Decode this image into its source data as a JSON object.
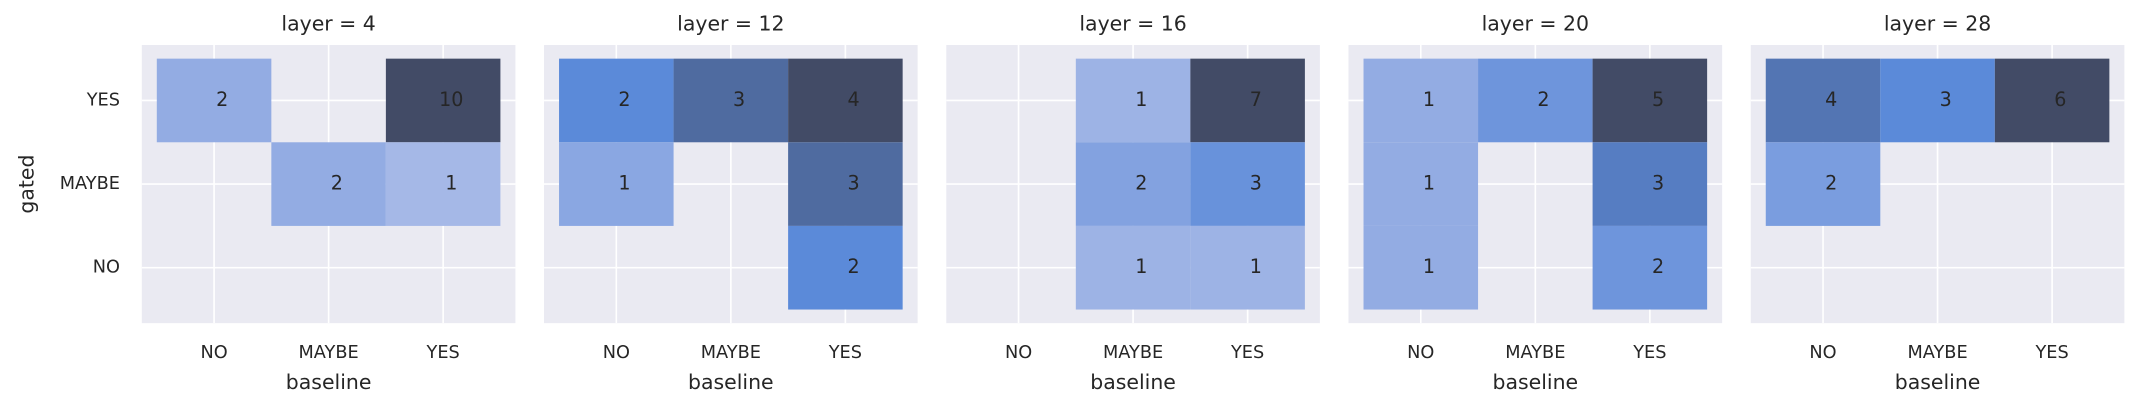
{
  "chart_data": [
    {
      "type": "heatmap",
      "title": "layer = 4",
      "x_categories": [
        "NO",
        "MAYBE",
        "YES"
      ],
      "y_categories": [
        "YES",
        "MAYBE",
        "NO"
      ],
      "values": [
        [
          2,
          null,
          10
        ],
        [
          null,
          2,
          1
        ],
        [
          null,
          null,
          null
        ]
      ],
      "xlabel": "baseline",
      "ylabel": "gated",
      "colors": [
        "#b8c3ea",
        "#5b8ad9",
        "#424b66"
      ],
      "grid": true
    },
    {
      "type": "heatmap",
      "title": "layer = 12",
      "x_categories": [
        "NO",
        "MAYBE",
        "YES"
      ],
      "y_categories": [
        "YES",
        "MAYBE",
        "NO"
      ],
      "values": [
        [
          2,
          3,
          4
        ],
        [
          1,
          null,
          3
        ],
        [
          null,
          null,
          2
        ]
      ],
      "xlabel": "baseline",
      "colors": [
        "#b8c3ea",
        "#5b8ad9",
        "#424b66"
      ],
      "grid": true
    },
    {
      "type": "heatmap",
      "title": "layer = 16",
      "x_categories": [
        "NO",
        "MAYBE",
        "YES"
      ],
      "y_categories": [
        "YES",
        "MAYBE",
        "NO"
      ],
      "values": [
        [
          null,
          1,
          7
        ],
        [
          null,
          2,
          3
        ],
        [
          null,
          1,
          1
        ]
      ],
      "xlabel": "baseline",
      "colors": [
        "#b8c3ea",
        "#5b8ad9",
        "#424b66"
      ],
      "grid": true
    },
    {
      "type": "heatmap",
      "title": "layer = 20",
      "x_categories": [
        "NO",
        "MAYBE",
        "YES"
      ],
      "y_categories": [
        "YES",
        "MAYBE",
        "NO"
      ],
      "values": [
        [
          1,
          2,
          5
        ],
        [
          1,
          null,
          3
        ],
        [
          1,
          null,
          2
        ]
      ],
      "xlabel": "baseline",
      "colors": [
        "#b8c3ea",
        "#5b8ad9",
        "#424b66"
      ],
      "grid": true
    },
    {
      "type": "heatmap",
      "title": "layer = 28",
      "x_categories": [
        "NO",
        "MAYBE",
        "YES"
      ],
      "y_categories": [
        "YES",
        "MAYBE",
        "NO"
      ],
      "values": [
        [
          4,
          3,
          6
        ],
        [
          2,
          null,
          null
        ],
        [
          null,
          null,
          null
        ]
      ],
      "xlabel": "baseline",
      "colors": [
        "#b8c3ea",
        "#5b8ad9",
        "#424b66"
      ],
      "grid": true
    }
  ]
}
